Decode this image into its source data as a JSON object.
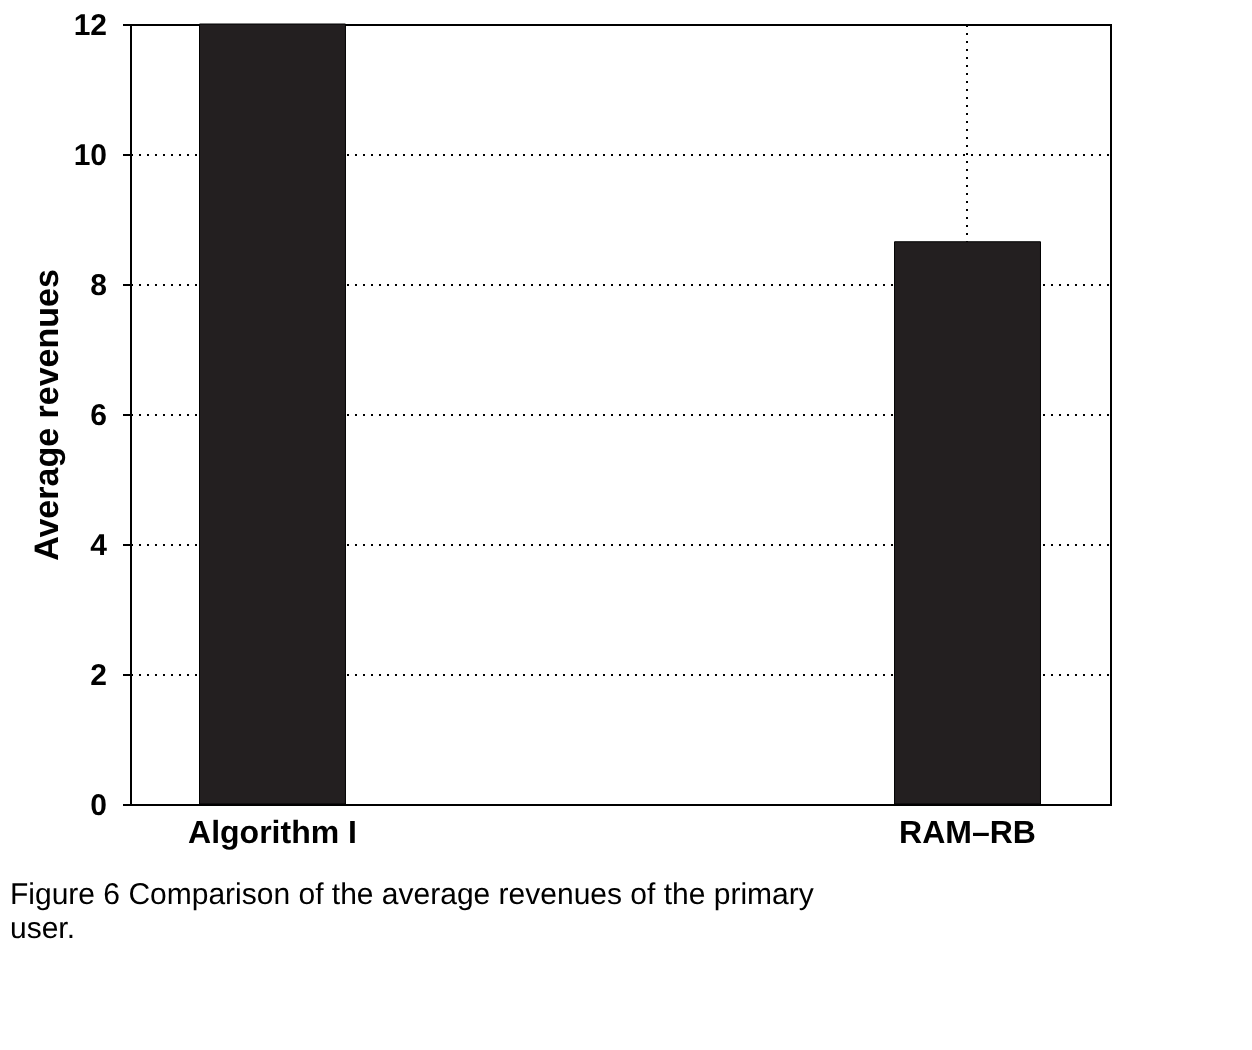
{
  "chart_data": {
    "type": "bar",
    "ylabel": "Average revenues",
    "categories": [
      "Algorithm I",
      "RAM–RB"
    ],
    "values": [
      12,
      8.65
    ],
    "color": "#231f20",
    "ylim": [
      0,
      12
    ],
    "yticks": [
      0,
      2,
      4,
      6,
      8,
      10,
      12
    ],
    "grid": true,
    "annotations": [
      "Figure 6 Comparison of the average revenues of the primary user."
    ]
  }
}
